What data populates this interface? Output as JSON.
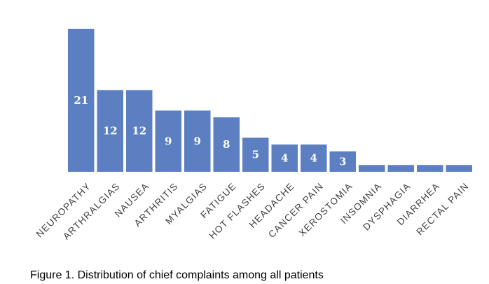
{
  "caption": "Figure 1. Distribution of chief complaints among all patients",
  "colors": {
    "bar": "#5b7fc1",
    "value_label": "#ffffff",
    "category_label": "#404040",
    "background": "#ffffff"
  },
  "chart_data": {
    "type": "bar",
    "categories": [
      "NEUROPATHY",
      "ARTHRALGIAS",
      "NAUSEA",
      "ARTHRITIS",
      "MYALGIAS",
      "FATIGUE",
      "HOT FLASHES",
      "HEADACHE",
      "CANCER PAIN",
      "XEROSTOMIA",
      "INSOMNIA",
      "DYSPHAGIA",
      "DIARRHEA",
      "RECTAL PAIN"
    ],
    "values": [
      21,
      12,
      12,
      9,
      9,
      8,
      5,
      4,
      4,
      3,
      1,
      1,
      1,
      1
    ],
    "value_labels": [
      "21",
      "12",
      "12",
      "9",
      "9",
      "8",
      "5",
      "4",
      "4",
      "3",
      "",
      "",
      "",
      ""
    ],
    "title": "",
    "xlabel": "",
    "ylabel": "",
    "ylim": [
      0,
      21
    ],
    "grid": false,
    "legend": "none",
    "category_label_rotation": "-45deg"
  }
}
